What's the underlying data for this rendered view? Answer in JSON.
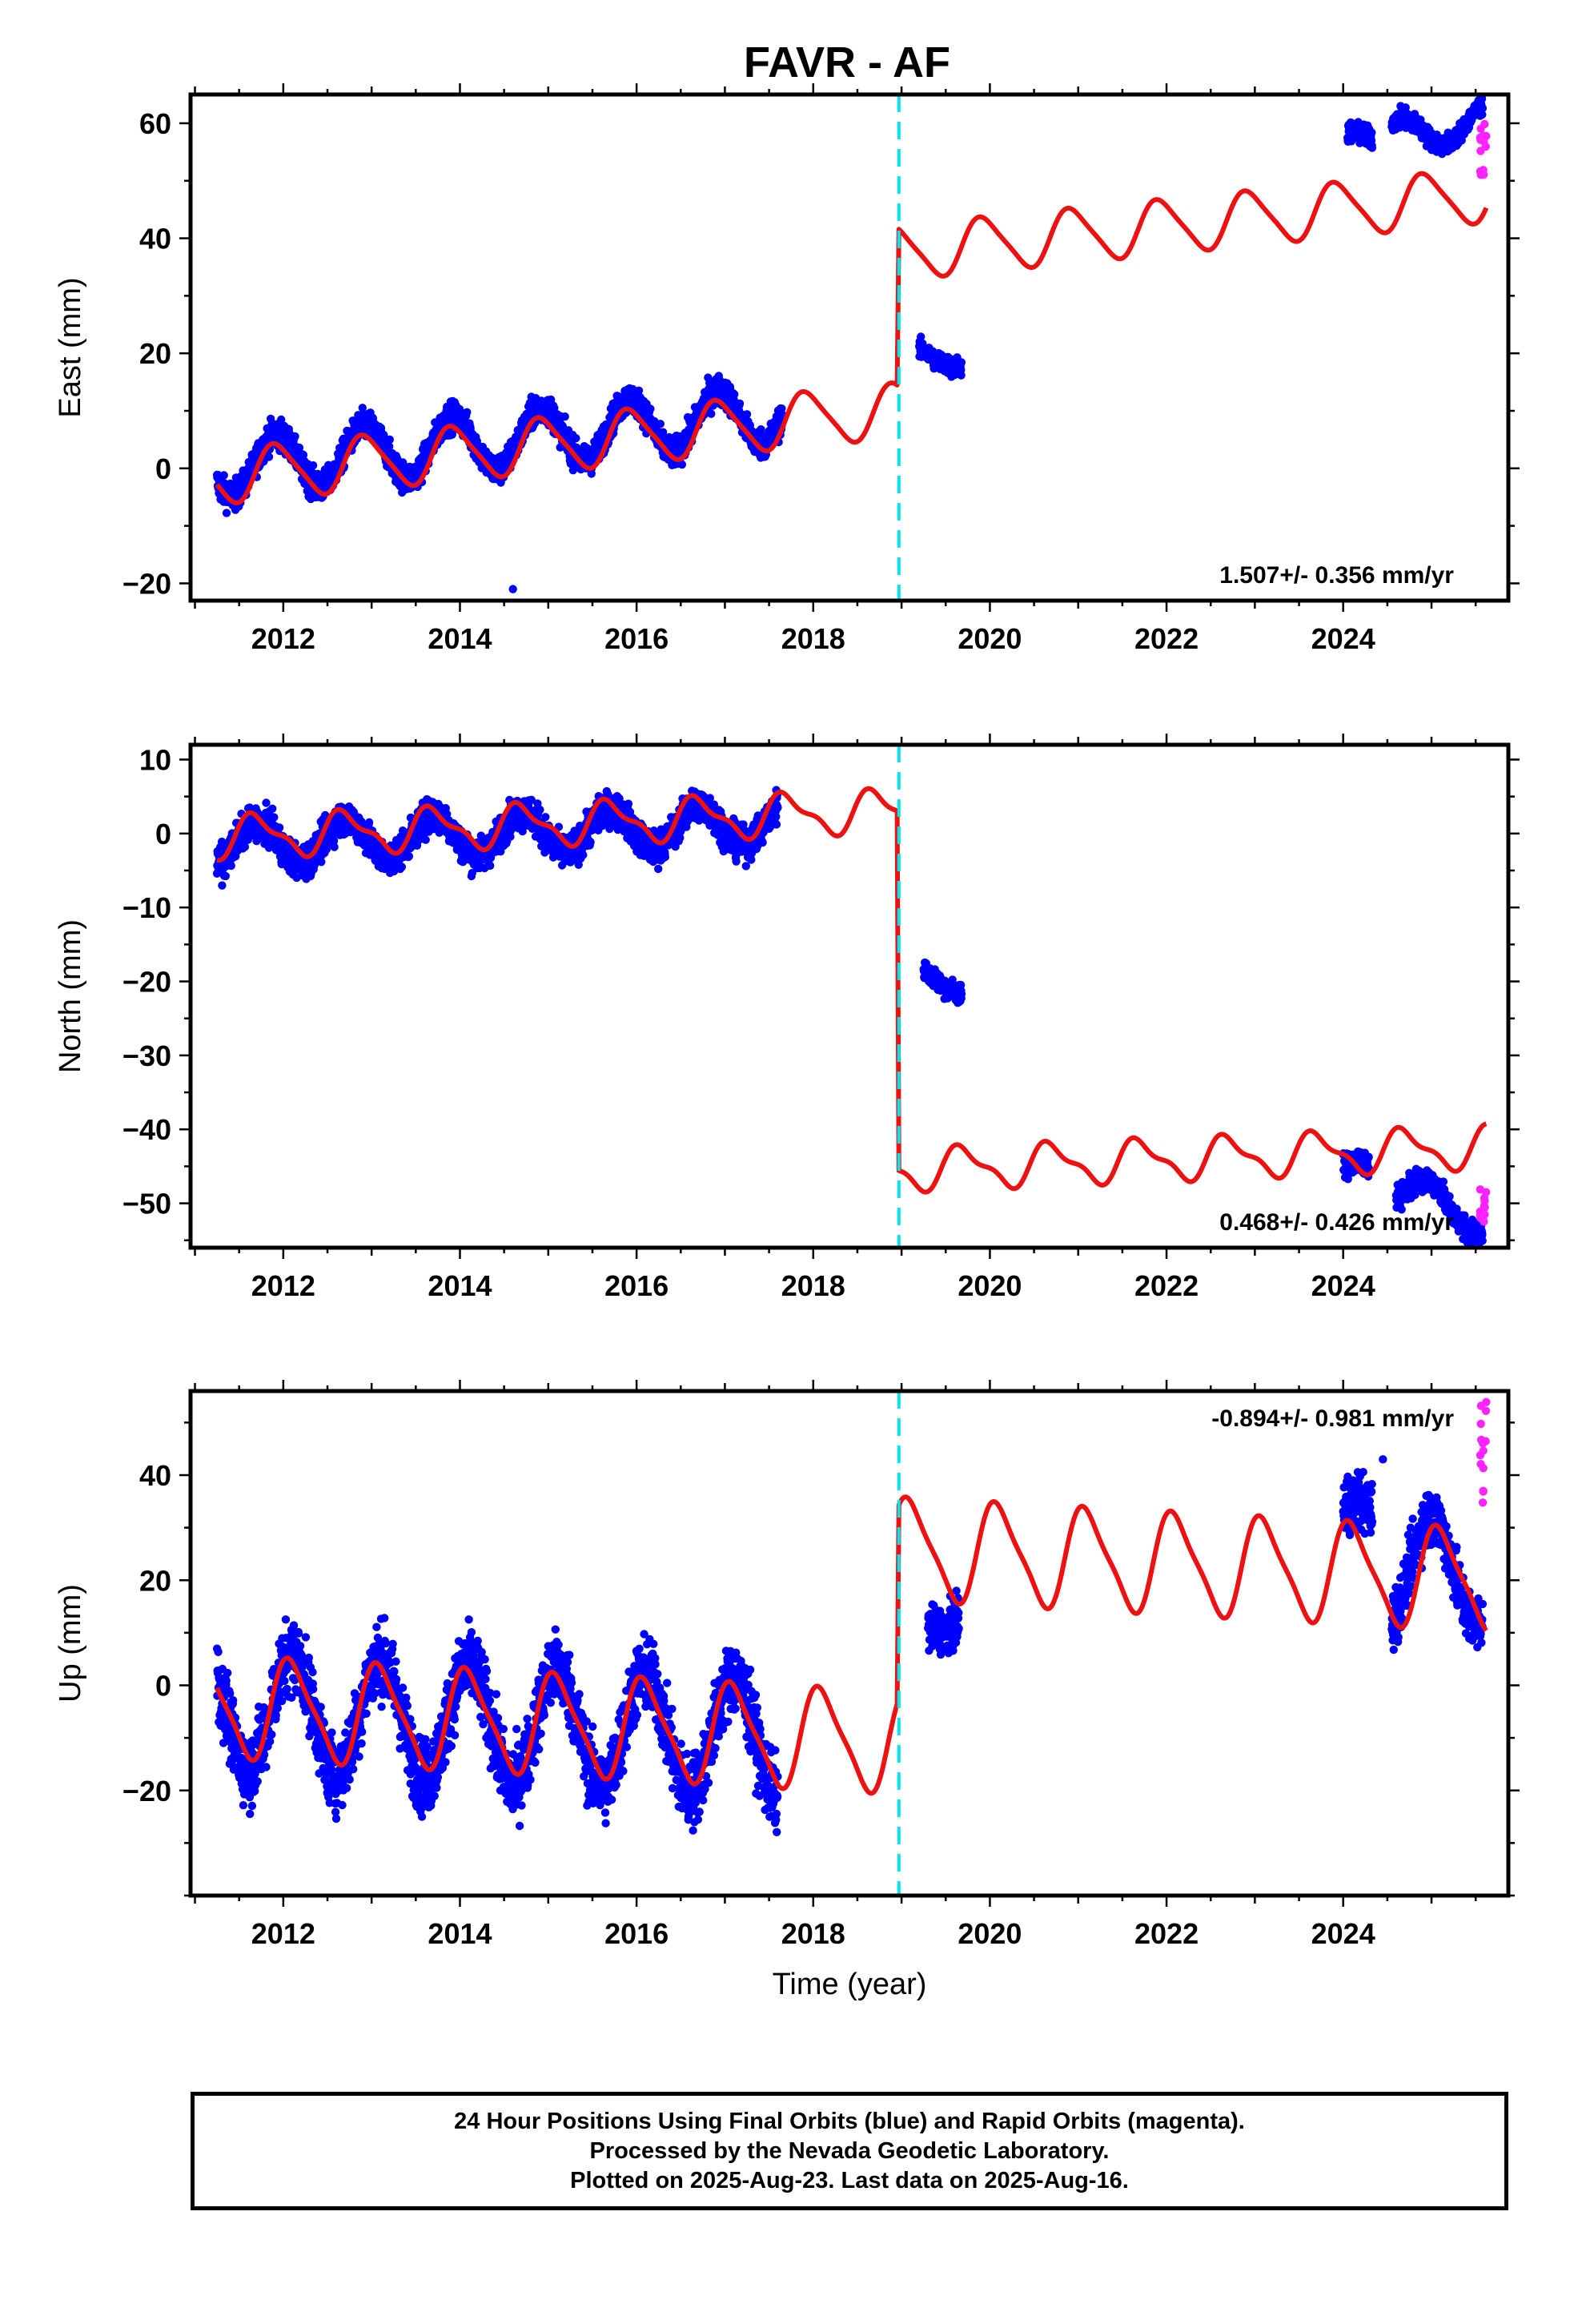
{
  "title": "FAVR - AF",
  "colors": {
    "final_orbits": "#0000ff",
    "rapid_orbits": "#ff22ff",
    "model": "#ee1111",
    "equipment_change": "#00e5ee",
    "frame": "#000000"
  },
  "chart_data": [
    {
      "type": "scatter",
      "component": "East",
      "ylabel": "East (mm)",
      "xlabel": "",
      "xlim": [
        2010.95,
        2025.87
      ],
      "ylim": [
        -23,
        65
      ],
      "yticks": [
        -20,
        0,
        20,
        40,
        60
      ],
      "xticks": [
        2012,
        2014,
        2016,
        2018,
        2020,
        2022,
        2024
      ],
      "rate_label": "1.507+/- 0.356 mm/yr",
      "rate_position": "bottom-right",
      "equipment_change_x": 2018.97,
      "segments": [
        {
          "start": 2011.25,
          "end": 2017.65,
          "offset": 0.0,
          "trend": 1.507,
          "amp": 5.0,
          "phase": 0.33,
          "noise": 1.8
        },
        {
          "start": 2019.2,
          "end": 2019.68,
          "offset": 20.2,
          "trend": -4.0,
          "amp": 1.0,
          "phase": 0.2,
          "noise": 1.2
        },
        {
          "start": 2024.05,
          "end": 2024.33,
          "offset": 57.5,
          "trend": 0.0,
          "amp": 1.0,
          "phase": 0.2,
          "noise": 1.3
        },
        {
          "start": 2024.55,
          "end": 2025.58,
          "offset": 57.5,
          "trend": 3.0,
          "amp": 3.0,
          "phase": 0.6,
          "noise": 1.2
        }
      ],
      "outliers": [
        [
          2014.6,
          -21
        ]
      ],
      "rapid": {
        "start": 2025.55,
        "end": 2025.62,
        "min": 51,
        "max": 60
      },
      "model": [
        {
          "start": 2011.25,
          "end": 2018.95,
          "offset": -1.5,
          "trend": 1.507,
          "amp": 4.6,
          "phase": 0.32,
          "amp2": 0.8
        },
        {
          "start": 2018.97,
          "end": 2025.62,
          "offset": 37.5,
          "trend": 1.507,
          "amp": 4.6,
          "phase": 0.32,
          "amp2": 0.8
        }
      ]
    },
    {
      "type": "scatter",
      "component": "North",
      "ylabel": "North (mm)",
      "xlabel": "",
      "xlim": [
        2010.95,
        2025.87
      ],
      "ylim": [
        -56,
        12
      ],
      "yticks": [
        -50,
        -40,
        -30,
        -20,
        -10,
        0,
        10
      ],
      "xticks": [
        2012,
        2014,
        2016,
        2018,
        2020,
        2022,
        2024
      ],
      "rate_label": "0.468+/- 0.426 mm/yr",
      "rate_position": "bottom-right",
      "equipment_change_x": 2018.97,
      "segments": [
        {
          "start": 2011.25,
          "end": 2017.6,
          "offset": -1.5,
          "trend": 0.468,
          "amp": 2.8,
          "phase": 0.55,
          "noise": 1.6
        },
        {
          "start": 2019.25,
          "end": 2019.68,
          "offset": -18.5,
          "trend": -6.0,
          "amp": 0.8,
          "phase": 0.2,
          "noise": 1.0
        },
        {
          "start": 2024.0,
          "end": 2024.3,
          "offset": -46.0,
          "trend": 0.0,
          "amp": 1.5,
          "phase": 0.1,
          "noise": 1.2
        },
        {
          "start": 2024.6,
          "end": 2025.58,
          "offset": -48.0,
          "trend": -4.0,
          "amp": 2.5,
          "phase": 0.3,
          "noise": 1.1
        }
      ],
      "outliers": [],
      "rapid": {
        "start": 2025.55,
        "end": 2025.62,
        "min": -53,
        "max": -48
      },
      "model": [
        {
          "start": 2011.25,
          "end": 2018.95,
          "offset": -0.5,
          "trend": 0.468,
          "amp": 2.6,
          "phase": 0.55,
          "amp2": 1.0
        },
        {
          "start": 2018.97,
          "end": 2025.62,
          "offset": -45.5,
          "trend": 0.468,
          "amp": 2.6,
          "phase": 0.55,
          "amp2": 1.0
        }
      ]
    },
    {
      "type": "scatter",
      "component": "Up",
      "ylabel": "Up (mm)",
      "xlabel": "Time (year)",
      "xlim": [
        2010.95,
        2025.87
      ],
      "ylim": [
        -40,
        56
      ],
      "yticks": [
        -20,
        0,
        20,
        40
      ],
      "xticks": [
        2012,
        2014,
        2016,
        2018,
        2020,
        2022,
        2024
      ],
      "rate_label": "-0.894+/- 0.981 mm/yr",
      "rate_position": "top-right",
      "equipment_change_x": 2018.97,
      "segments": [
        {
          "start": 2011.25,
          "end": 2017.6,
          "offset": -4.5,
          "trend": -0.894,
          "amp": 11.0,
          "phase": 0.15,
          "noise": 5.0
        },
        {
          "start": 2019.3,
          "end": 2019.65,
          "offset": 11.0,
          "trend": 8.0,
          "amp": 2.0,
          "phase": 0.2,
          "noise": 3.0
        },
        {
          "start": 2024.0,
          "end": 2024.33,
          "offset": 32.0,
          "trend": 0.0,
          "amp": 3.0,
          "phase": 0.1,
          "noise": 4.0
        },
        {
          "start": 2024.55,
          "end": 2025.58,
          "offset": 22.0,
          "trend": 0.0,
          "amp": 10.0,
          "phase": 0.25,
          "noise": 4.0
        }
      ],
      "outliers": [
        [
          2011.27,
          -7
        ],
        [
          2024.45,
          43
        ]
      ],
      "rapid": {
        "start": 2025.55,
        "end": 2025.62,
        "min": 34,
        "max": 54
      },
      "model": [
        {
          "start": 2011.25,
          "end": 2018.95,
          "offset": -4.0,
          "trend": -0.894,
          "amp": 9.2,
          "phase": 0.15,
          "amp2": 2.0
        },
        {
          "start": 2018.97,
          "end": 2025.62,
          "offset": 26.0,
          "trend": -0.894,
          "amp": 9.2,
          "phase": 0.15,
          "amp2": 2.0
        }
      ]
    }
  ],
  "footer": {
    "line1": "24 Hour Positions Using Final Orbits (blue) and Rapid Orbits (magenta).",
    "line2": "Processed by the Nevada Geodetic Laboratory.",
    "line3": "Plotted on 2025-Aug-23. Last data on 2025-Aug-16."
  }
}
